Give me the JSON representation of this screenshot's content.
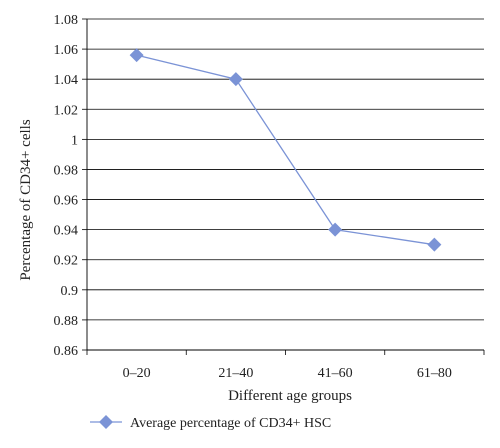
{
  "chart_data": {
    "type": "line",
    "categories": [
      "0–20",
      "21–40",
      "41–60",
      "61–80"
    ],
    "series": [
      {
        "name": "Average percentage of CD34+ HSC",
        "values": [
          1.056,
          1.04,
          0.94,
          0.93
        ]
      }
    ],
    "title": "",
    "xlabel": "Different age groups",
    "ylabel": "Percentage of CD34+ cells",
    "ylim": [
      0.86,
      1.08
    ],
    "yticks": [
      "0.86",
      "0.88",
      "0.9",
      "0.92",
      "0.94",
      "0.96",
      "0.98",
      "1",
      "1.02",
      "1.04",
      "1.06",
      "1.08"
    ],
    "grid": "horizontal",
    "legend": "bottom",
    "series_color": "#7b93d6",
    "grid_color": "#000000"
  }
}
